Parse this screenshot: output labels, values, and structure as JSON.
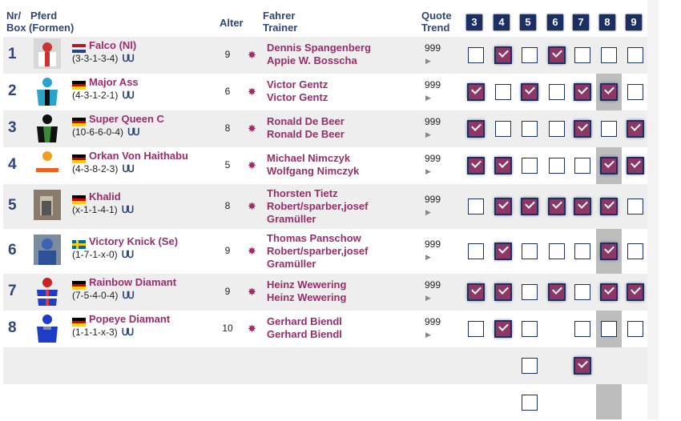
{
  "header": {
    "nr": "Nr/",
    "box": "Box",
    "pferd": "Pferd",
    "formen": "(Formen)",
    "alter": "Alter",
    "fahrer": "Fahrer",
    "trainer": "Trainer",
    "quote": "Quote",
    "trend": "Trend",
    "boxes": [
      "3",
      "4",
      "5",
      "6",
      "7",
      "8",
      "9"
    ]
  },
  "colors": {
    "header_text": "#30467a",
    "name_text": "#9b2d6a",
    "box_badge": "#1c2f63",
    "checked": "#8e3764",
    "column_8_shade": "#bdbdbd"
  },
  "shoe_symbol": "ᑌᑌ",
  "star_symbol": "✸",
  "trend_symbol": "▶",
  "rows": [
    {
      "nr": "1",
      "horse": "Falco (Nl)",
      "flag": "nl",
      "form": "(3-3-1-3-4)",
      "age": "9",
      "driver": "Dennis Spangenberg",
      "trainer": "Appie W. Bosscha",
      "quote": "999",
      "silk": "red-white",
      "checks": [
        false,
        true,
        false,
        true,
        false,
        false,
        false
      ]
    },
    {
      "nr": "2",
      "horse": "Major Ass",
      "flag": "de",
      "form": "(4-3-1-2-1)",
      "age": "6",
      "driver": "Victor Gentz",
      "trainer": "Victor Gentz",
      "quote": "999",
      "silk": "teal",
      "checks": [
        true,
        false,
        true,
        false,
        true,
        true,
        false
      ]
    },
    {
      "nr": "3",
      "horse": "Super Queen C",
      "flag": "de",
      "form": "(10-6-6-0-4)",
      "age": "8",
      "driver": "Ronald De Beer",
      "trainer": "Ronald De Beer",
      "quote": "999",
      "silk": "black-green",
      "checks": [
        true,
        false,
        false,
        false,
        true,
        false,
        true
      ]
    },
    {
      "nr": "4",
      "horse": "Orkan Von Haithabu",
      "flag": "de",
      "form": "(4-3-8-2-3)",
      "age": "5",
      "driver": "Michael Nimczyk",
      "trainer": "Wolfgang Nimczyk",
      "quote": "999",
      "silk": "orange-white",
      "checks": [
        true,
        true,
        false,
        false,
        false,
        true,
        true
      ]
    },
    {
      "nr": "5",
      "horse": "Khalid",
      "flag": "de",
      "form": "(x-1-1-4-1)",
      "age": "8",
      "driver": "Thorsten Tietz",
      "trainer": "Robert/sparber,josef Gramüller",
      "quote": "999",
      "silk": "photo",
      "checks": [
        false,
        true,
        true,
        true,
        true,
        true,
        false
      ]
    },
    {
      "nr": "6",
      "horse": "Victory Knick (Se)",
      "flag": "se",
      "form": "(1-7-1-x-0)",
      "age": "9",
      "driver": "Thomas Panschow",
      "trainer": "Robert/sparber,josef Gramüller",
      "quote": "999",
      "silk": "photo-blue",
      "checks": [
        false,
        true,
        false,
        false,
        false,
        true,
        false
      ]
    },
    {
      "nr": "7",
      "horse": "Rainbow Diamant",
      "flag": "de",
      "form": "(7-5-4-0-4)",
      "age": "9",
      "driver": "Heinz Wewering",
      "trainer": "Heinz Wewering",
      "quote": "999",
      "silk": "blue-rainbow",
      "checks": [
        true,
        true,
        false,
        true,
        false,
        true,
        true
      ]
    },
    {
      "nr": "8",
      "horse": "Popeye Diamant",
      "flag": "de",
      "form": "(1-1-1-x-3)",
      "age": "10",
      "driver": "Gerhard Biendl",
      "trainer": "Gerhard Biendl",
      "quote": "999",
      "silk": "blue",
      "checks": [
        false,
        true,
        false,
        null,
        false,
        false,
        false
      ]
    }
  ],
  "extra_rows": [
    {
      "checks": [
        null,
        null,
        false,
        null,
        true,
        null,
        null
      ]
    },
    {
      "checks": [
        null,
        null,
        false,
        null,
        null,
        null,
        null
      ]
    }
  ]
}
